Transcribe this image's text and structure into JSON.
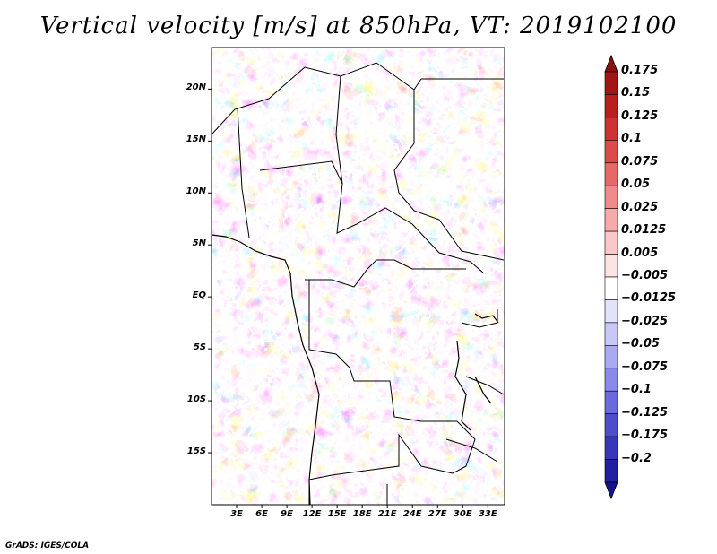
{
  "title": "Vertical velocity [m/s] at 850hPa, VT: 2019102100",
  "credit": "GrADS: IGES/COLA",
  "map": {
    "lat_range": [
      -20,
      24
    ],
    "lon_range": [
      0,
      35
    ],
    "lat_ticks": [
      {
        "value": 20,
        "label": "20N"
      },
      {
        "value": 15,
        "label": "15N"
      },
      {
        "value": 10,
        "label": "10N"
      },
      {
        "value": 5,
        "label": "5N"
      },
      {
        "value": 0,
        "label": "EQ"
      },
      {
        "value": -5,
        "label": "5S"
      },
      {
        "value": -10,
        "label": "10S"
      },
      {
        "value": -15,
        "label": "15S"
      }
    ],
    "lon_ticks": [
      {
        "value": 3,
        "label": "3E"
      },
      {
        "value": 6,
        "label": "6E"
      },
      {
        "value": 9,
        "label": "9E"
      },
      {
        "value": 12,
        "label": "12E"
      },
      {
        "value": 15,
        "label": "15E"
      },
      {
        "value": 18,
        "label": "18E"
      },
      {
        "value": 21,
        "label": "21E"
      },
      {
        "value": 24,
        "label": "24E"
      },
      {
        "value": 27,
        "label": "27E"
      },
      {
        "value": 30,
        "label": "30E"
      },
      {
        "value": 33,
        "label": "33E"
      }
    ]
  },
  "colorbar": {
    "levels": [
      {
        "label": "0.175",
        "color": "#a01616"
      },
      {
        "label": "0.15",
        "color": "#b82020"
      },
      {
        "label": "0.125",
        "color": "#cc3232"
      },
      {
        "label": "0.1",
        "color": "#dc4a4a"
      },
      {
        "label": "0.075",
        "color": "#e86868"
      },
      {
        "label": "0.05",
        "color": "#f08a8a"
      },
      {
        "label": "0.025",
        "color": "#f6aaaa"
      },
      {
        "label": "0.0125",
        "color": "#fac8c8"
      },
      {
        "label": "0.005",
        "color": "#fde4e4"
      },
      {
        "label": "−0.005",
        "color": "#ffffff"
      },
      {
        "label": "−0.0125",
        "color": "#e2e2fb"
      },
      {
        "label": "−0.025",
        "color": "#c8c8f6"
      },
      {
        "label": "−0.05",
        "color": "#aaaaf0"
      },
      {
        "label": "−0.075",
        "color": "#8a8aea"
      },
      {
        "label": "−0.1",
        "color": "#6a6adc"
      },
      {
        "label": "−0.125",
        "color": "#4e4ecc"
      },
      {
        "label": "−0.175",
        "color": "#3636b8"
      },
      {
        "label": "−0.2",
        "color": "#2020a0"
      }
    ],
    "top_color": "#8c1010",
    "bottom_color": "#14148c"
  }
}
